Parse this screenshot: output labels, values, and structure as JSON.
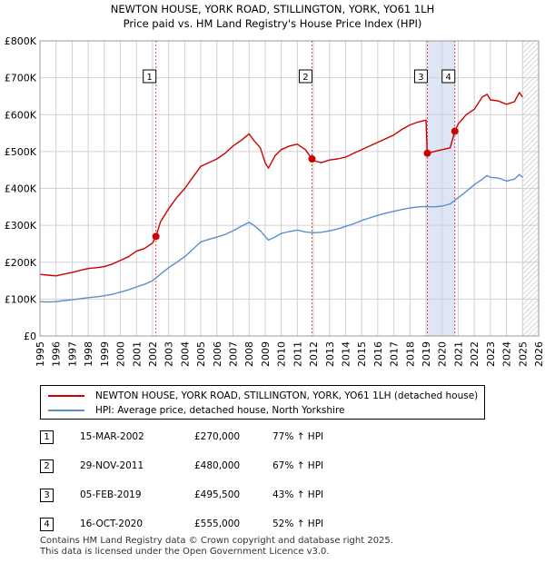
{
  "title": "NEWTON HOUSE, YORK ROAD, STILLINGTON, YORK, YO61 1LH",
  "subtitle": "Price paid vs. HM Land Registry's House Price Index (HPI)",
  "legend": {
    "property_label": "NEWTON HOUSE, YORK ROAD, STILLINGTON, YORK, YO61 1LH (detached house)",
    "hpi_label": "HPI: Average price, detached house, North Yorkshire"
  },
  "transactions": [
    {
      "num": "1",
      "date": "15-MAR-2002",
      "price": "£270,000",
      "hpi": "77% ↑ HPI"
    },
    {
      "num": "2",
      "date": "29-NOV-2011",
      "price": "£480,000",
      "hpi": "67% ↑ HPI"
    },
    {
      "num": "3",
      "date": "05-FEB-2019",
      "price": "£495,500",
      "hpi": "43% ↑ HPI"
    },
    {
      "num": "4",
      "date": "16-OCT-2020",
      "price": "£555,000",
      "hpi": "52% ↑ HPI"
    }
  ],
  "footer": {
    "line1": "Contains HM Land Registry data © Crown copyright and database right 2025.",
    "line2": "This data is licensed under the Open Government Licence v3.0."
  },
  "colors": {
    "property": "#cc0000",
    "hpi": "#5b8fc9",
    "grid": "#d0d0d0",
    "shade": "#dde6f5",
    "vline": "#dd4444"
  },
  "chart_data": {
    "type": "line",
    "title": "NEWTON HOUSE, YORK ROAD, STILLINGTON, YORK, YO61 1LH",
    "xlabel": "",
    "ylabel": "",
    "xlim": [
      1995,
      2026
    ],
    "ylim": [
      0,
      800000
    ],
    "x_ticks": [
      1995,
      1996,
      1997,
      1998,
      1999,
      2000,
      2001,
      2002,
      2003,
      2004,
      2005,
      2006,
      2007,
      2008,
      2009,
      2010,
      2011,
      2012,
      2013,
      2014,
      2015,
      2016,
      2017,
      2018,
      2019,
      2020,
      2021,
      2022,
      2023,
      2024,
      2025,
      2026
    ],
    "x_tick_labels": [
      "1995",
      "1996",
      "1997",
      "1998",
      "1999",
      "2000",
      "2001",
      "2002",
      "2003",
      "2004",
      "2005",
      "2006",
      "2007",
      "2008",
      "2009",
      "2010",
      "2011",
      "2012",
      "2013",
      "2014",
      "2015",
      "2016",
      "2017",
      "2018",
      "2019",
      "2020",
      "2021",
      "2022",
      "2023",
      "2024",
      "2025",
      "2026"
    ],
    "y_ticks": [
      0,
      100000,
      200000,
      300000,
      400000,
      500000,
      600000,
      700000,
      800000
    ],
    "y_tick_labels": [
      "£0",
      "£100K",
      "£200K",
      "£300K",
      "£400K",
      "£500K",
      "£600K",
      "£700K",
      "£800K"
    ],
    "shaded_ranges": [
      [
        2019.1,
        2020.8
      ]
    ],
    "hatched_from": 2025.0,
    "series": [
      {
        "name": "NEWTON HOUSE, YORK ROAD, STILLINGTON, YORK, YO61 1LH (detached house)",
        "x": [
          1995.0,
          1995.5,
          1996.0,
          1996.5,
          1997.0,
          1997.5,
          1998.0,
          1998.5,
          1999.0,
          1999.5,
          2000.0,
          2000.5,
          2001.0,
          2001.5,
          2002.0,
          2002.21,
          2002.5,
          2003.0,
          2003.5,
          2004.0,
          2004.5,
          2005.0,
          2005.5,
          2006.0,
          2006.5,
          2007.0,
          2007.5,
          2008.0,
          2008.3,
          2008.7,
          2009.0,
          2009.2,
          2009.6,
          2010.0,
          2010.5,
          2011.0,
          2011.5,
          2011.91,
          2012.0,
          2012.5,
          2013.0,
          2013.5,
          2014.0,
          2014.5,
          2015.0,
          2015.5,
          2016.0,
          2016.5,
          2017.0,
          2017.5,
          2018.0,
          2018.5,
          2019.0,
          2019.08,
          2019.5,
          2020.0,
          2020.5,
          2020.79,
          2021.0,
          2021.5,
          2022.0,
          2022.5,
          2022.8,
          2023.0,
          2023.5,
          2024.0,
          2024.5,
          2024.8,
          2025.0
        ],
        "values": [
          167000,
          165000,
          163000,
          168000,
          172000,
          178000,
          183000,
          185000,
          188000,
          195000,
          205000,
          215000,
          230000,
          237000,
          252000,
          270000,
          310000,
          345000,
          375000,
          400000,
          430000,
          460000,
          470000,
          480000,
          495000,
          515000,
          530000,
          548000,
          530000,
          510000,
          470000,
          455000,
          488000,
          505000,
          515000,
          520000,
          505000,
          480000,
          475000,
          470000,
          477000,
          480000,
          485000,
          495000,
          505000,
          515000,
          525000,
          535000,
          545000,
          560000,
          572000,
          580000,
          585000,
          495500,
          500000,
          505000,
          510000,
          555000,
          575000,
          600000,
          615000,
          648000,
          655000,
          640000,
          637000,
          628000,
          635000,
          660000,
          648000
        ]
      },
      {
        "name": "HPI: Average price, detached house, North Yorkshire",
        "x": [
          1995.0,
          1995.5,
          1996.0,
          1996.5,
          1997.0,
          1997.5,
          1998.0,
          1998.5,
          1999.0,
          1999.5,
          2000.0,
          2000.5,
          2001.0,
          2001.5,
          2002.0,
          2002.5,
          2003.0,
          2003.5,
          2004.0,
          2004.5,
          2005.0,
          2005.5,
          2006.0,
          2006.5,
          2007.0,
          2007.5,
          2008.0,
          2008.3,
          2008.7,
          2009.0,
          2009.2,
          2009.6,
          2010.0,
          2010.5,
          2011.0,
          2011.5,
          2012.0,
          2012.5,
          2013.0,
          2013.5,
          2014.0,
          2014.5,
          2015.0,
          2015.5,
          2016.0,
          2016.5,
          2017.0,
          2017.5,
          2018.0,
          2018.5,
          2019.0,
          2019.5,
          2020.0,
          2020.5,
          2021.0,
          2021.5,
          2022.0,
          2022.5,
          2022.8,
          2023.0,
          2023.5,
          2024.0,
          2024.5,
          2024.8,
          2025.0
        ],
        "values": [
          93000,
          92000,
          93000,
          96000,
          98000,
          101000,
          104000,
          106000,
          109000,
          113000,
          119000,
          125000,
          133000,
          140000,
          150000,
          168000,
          185000,
          200000,
          215000,
          235000,
          255000,
          262000,
          268000,
          275000,
          285000,
          297000,
          308000,
          300000,
          285000,
          270000,
          260000,
          268000,
          278000,
          283000,
          287000,
          282000,
          280000,
          281000,
          285000,
          290000,
          297000,
          304000,
          313000,
          320000,
          327000,
          333000,
          338000,
          343000,
          347000,
          350000,
          351000,
          350000,
          352000,
          358000,
          375000,
          392000,
          410000,
          425000,
          435000,
          430000,
          428000,
          420000,
          425000,
          438000,
          430000
        ]
      }
    ],
    "sale_markers": [
      {
        "label": "1",
        "x": 2002.21,
        "y": 270000
      },
      {
        "label": "2",
        "x": 2011.91,
        "y": 480000
      },
      {
        "label": "3",
        "x": 2019.08,
        "y": 495500
      },
      {
        "label": "4",
        "x": 2020.79,
        "y": 555000
      }
    ]
  }
}
